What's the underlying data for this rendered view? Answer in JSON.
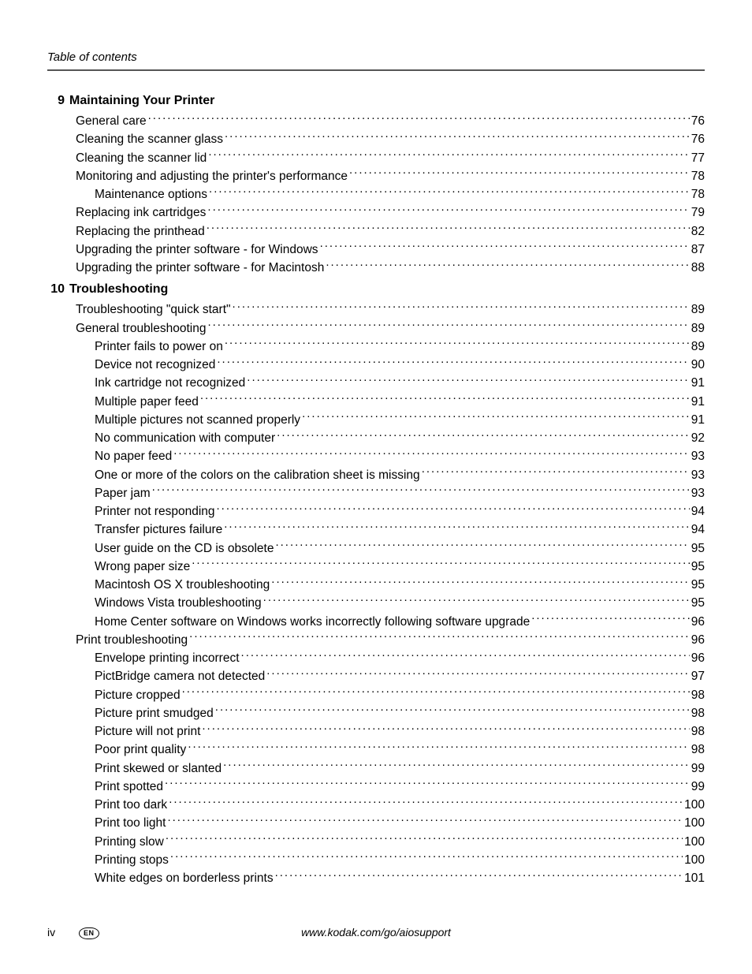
{
  "running_head": "Table of contents",
  "chapters": [
    {
      "number": "9",
      "title": "Maintaining Your Printer",
      "entries": [
        {
          "level": 1,
          "label": "General care",
          "page": "76"
        },
        {
          "level": 1,
          "label": "Cleaning the scanner glass",
          "page": "76"
        },
        {
          "level": 1,
          "label": "Cleaning the scanner lid",
          "page": "77"
        },
        {
          "level": 1,
          "label": "Monitoring and adjusting the printer's performance",
          "page": "78"
        },
        {
          "level": 2,
          "label": "Maintenance options",
          "page": "78"
        },
        {
          "level": 1,
          "label": "Replacing ink cartridges",
          "page": "79"
        },
        {
          "level": 1,
          "label": "Replacing the printhead",
          "page": "82"
        },
        {
          "level": 1,
          "label": "Upgrading the printer software - for Windows",
          "page": "87"
        },
        {
          "level": 1,
          "label": "Upgrading the printer software - for Macintosh",
          "page": "88"
        }
      ]
    },
    {
      "number": "10",
      "title": "Troubleshooting",
      "entries": [
        {
          "level": 1,
          "label": "Troubleshooting \"quick start\"",
          "page": "89"
        },
        {
          "level": 1,
          "label": "General troubleshooting",
          "page": "89"
        },
        {
          "level": 2,
          "label": "Printer fails to power on",
          "page": "89"
        },
        {
          "level": 2,
          "label": "Device not recognized",
          "page": "90"
        },
        {
          "level": 2,
          "label": "Ink cartridge not recognized",
          "page": "91"
        },
        {
          "level": 2,
          "label": "Multiple paper feed",
          "page": "91"
        },
        {
          "level": 2,
          "label": "Multiple pictures not scanned properly",
          "page": "91"
        },
        {
          "level": 2,
          "label": "No communication with computer",
          "page": "92"
        },
        {
          "level": 2,
          "label": "No paper feed",
          "page": "93"
        },
        {
          "level": 2,
          "label": "One or more of the colors on the calibration sheet is missing",
          "page": "93"
        },
        {
          "level": 2,
          "label": "Paper jam",
          "page": "93"
        },
        {
          "level": 2,
          "label": "Printer not responding",
          "page": "94"
        },
        {
          "level": 2,
          "label": "Transfer pictures failure",
          "page": "94"
        },
        {
          "level": 2,
          "label": "User guide on the CD is obsolete",
          "page": "95"
        },
        {
          "level": 2,
          "label": "Wrong paper size",
          "page": "95"
        },
        {
          "level": 2,
          "label": "Macintosh OS X troubleshooting",
          "page": "95"
        },
        {
          "level": 2,
          "label": "Windows Vista troubleshooting",
          "page": "95"
        },
        {
          "level": 2,
          "label": "Home Center software on Windows works incorrectly following software upgrade",
          "page": "96"
        },
        {
          "level": 1,
          "label": "Print troubleshooting",
          "page": "96"
        },
        {
          "level": 2,
          "label": "Envelope printing incorrect",
          "page": "96"
        },
        {
          "level": 2,
          "label": "PictBridge camera not detected",
          "page": "97"
        },
        {
          "level": 2,
          "label": "Picture cropped",
          "page": "98"
        },
        {
          "level": 2,
          "label": "Picture print smudged",
          "page": "98"
        },
        {
          "level": 2,
          "label": "Picture will not print",
          "page": "98"
        },
        {
          "level": 2,
          "label": "Poor print quality",
          "page": "98"
        },
        {
          "level": 2,
          "label": "Print skewed or slanted",
          "page": "99"
        },
        {
          "level": 2,
          "label": "Print spotted",
          "page": "99"
        },
        {
          "level": 2,
          "label": "Print too dark",
          "page": "100"
        },
        {
          "level": 2,
          "label": "Print too light",
          "page": "100"
        },
        {
          "level": 2,
          "label": "Printing slow",
          "page": "100"
        },
        {
          "level": 2,
          "label": "Printing stops",
          "page": "100"
        },
        {
          "level": 2,
          "label": "White edges on borderless prints",
          "page": "101"
        }
      ]
    }
  ],
  "footer": {
    "page_number": "iv",
    "language_badge": "EN",
    "url": "www.kodak.com/go/aiosupport"
  }
}
